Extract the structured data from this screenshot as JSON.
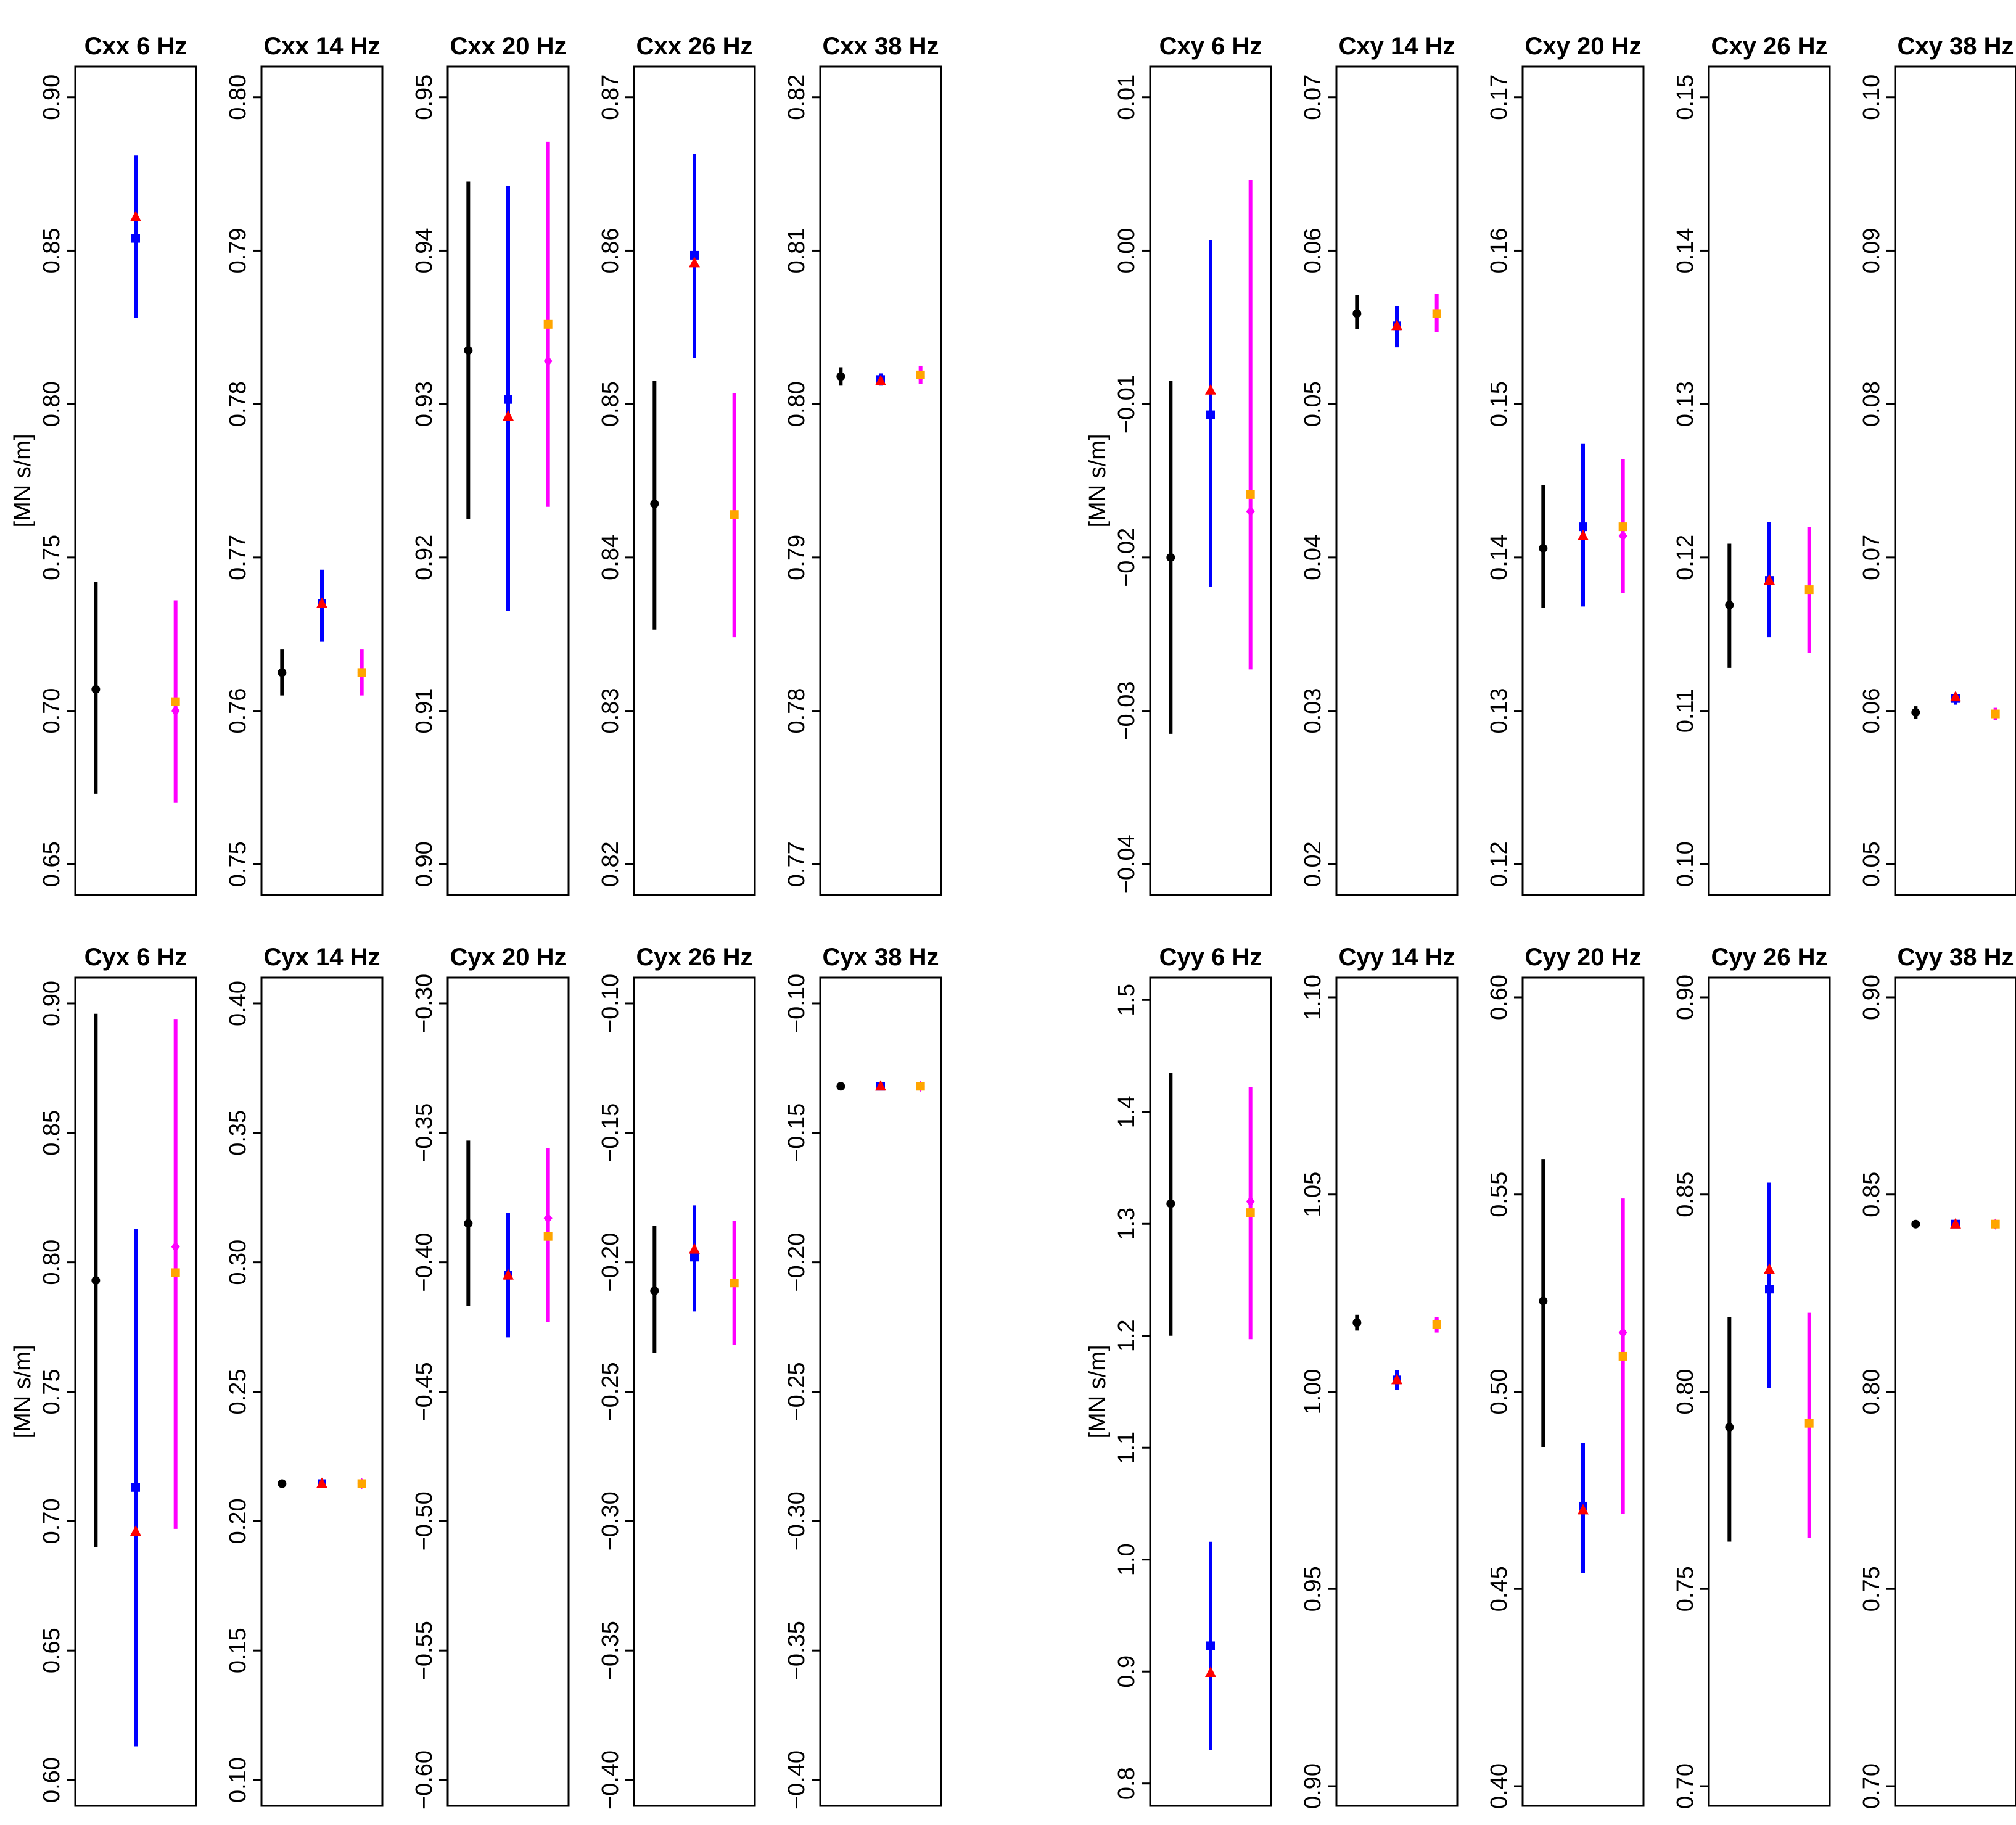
{
  "chart_data": {
    "type": "errorbar-grid",
    "colors": {
      "s1": "#000000",
      "s2": "#0000ff",
      "s3": "#ff00ff",
      "s2_marker": "#0000ff",
      "s2_alt_marker": "#ff0000",
      "s3_marker": "#ffa500"
    },
    "ylabel": "[MN s/m]",
    "panels": [
      {
        "title": "Cxx 6 Hz",
        "ymin": 0.64,
        "ymax": 0.91,
        "ticks": [
          "0.65",
          "0.70",
          "0.75",
          "0.80",
          "0.85",
          "0.90"
        ],
        "tickvals": [
          0.65,
          0.7,
          0.75,
          0.8,
          0.85,
          0.9
        ],
        "s1": {
          "v": 0.707,
          "lo": 0.673,
          "hi": 0.742
        },
        "s2": {
          "v": 0.854,
          "lo": 0.828,
          "hi": 0.881,
          "alt": 0.861
        },
        "s3": {
          "v": 0.703,
          "lo": 0.67,
          "hi": 0.736,
          "alt": 0.7
        }
      },
      {
        "title": "Cxx 14 Hz",
        "ymin": 0.748,
        "ymax": 0.802,
        "ticks": [
          "0.75",
          "0.76",
          "0.77",
          "0.78",
          "0.79",
          "0.80"
        ],
        "tickvals": [
          0.75,
          0.76,
          0.77,
          0.78,
          0.79,
          0.8
        ],
        "s1": {
          "v": 0.7625,
          "lo": 0.761,
          "hi": 0.764
        },
        "s2": {
          "v": 0.767,
          "lo": 0.7645,
          "hi": 0.7692,
          "alt": 0.767
        },
        "s3": {
          "v": 0.7625,
          "lo": 0.761,
          "hi": 0.764,
          "alt": 0.7625
        }
      },
      {
        "title": "Cxx 20 Hz",
        "ymin": 0.898,
        "ymax": 0.952,
        "ticks": [
          "0.90",
          "0.91",
          "0.92",
          "0.93",
          "0.94",
          "0.95"
        ],
        "tickvals": [
          0.9,
          0.91,
          0.92,
          0.93,
          0.94,
          0.95
        ],
        "s1": {
          "v": 0.9335,
          "lo": 0.9225,
          "hi": 0.9445
        },
        "s2": {
          "v": 0.9303,
          "lo": 0.9165,
          "hi": 0.9442,
          "alt": 0.9292
        },
        "s3": {
          "v": 0.9352,
          "lo": 0.9233,
          "hi": 0.9471,
          "alt": 0.9328
        }
      },
      {
        "title": "Cxx 26 Hz",
        "ymin": 0.818,
        "ymax": 0.872,
        "ticks": [
          "0.82",
          "0.83",
          "0.84",
          "0.85",
          "0.86",
          "0.87"
        ],
        "tickvals": [
          0.82,
          0.83,
          0.84,
          0.85,
          0.86,
          0.87
        ],
        "s1": {
          "v": 0.8435,
          "lo": 0.8353,
          "hi": 0.8515
        },
        "s2": {
          "v": 0.8597,
          "lo": 0.853,
          "hi": 0.8663,
          "alt": 0.8592
        },
        "s3": {
          "v": 0.8428,
          "lo": 0.8348,
          "hi": 0.8507,
          "alt": 0.8428
        }
      },
      {
        "title": "Cxx 38 Hz",
        "ymin": 0.768,
        "ymax": 0.822,
        "ticks": [
          "0.77",
          "0.78",
          "0.79",
          "0.80",
          "0.81",
          "0.82"
        ],
        "tickvals": [
          0.77,
          0.78,
          0.79,
          0.8,
          0.81,
          0.82
        ],
        "s1": {
          "v": 0.8018,
          "lo": 0.8012,
          "hi": 0.8024
        },
        "s2": {
          "v": 0.8016,
          "lo": 0.8012,
          "hi": 0.802,
          "alt": 0.8015
        },
        "s3": {
          "v": 0.8019,
          "lo": 0.8013,
          "hi": 0.8025,
          "alt": 0.8018
        }
      },
      {
        "title": "Cxy 6 Hz",
        "ymin": -0.042,
        "ymax": 0.012,
        "ticks": [
          "−0.04",
          "−0.03",
          "−0.02",
          "−0.01",
          "0.00",
          "0.01"
        ],
        "tickvals": [
          -0.04,
          -0.03,
          -0.02,
          -0.01,
          0.0,
          0.01
        ],
        "s1": {
          "v": -0.02,
          "lo": -0.0315,
          "hi": -0.0085
        },
        "s2": {
          "v": -0.0107,
          "lo": -0.0219,
          "hi": 0.0007,
          "alt": -0.0091
        },
        "s3": {
          "v": -0.0159,
          "lo": -0.0273,
          "hi": 0.0046,
          "alt": -0.017
        }
      },
      {
        "title": "Cxy 14 Hz",
        "ymin": 0.018,
        "ymax": 0.072,
        "ticks": [
          "0.02",
          "0.03",
          "0.04",
          "0.05",
          "0.06",
          "0.07"
        ],
        "tickvals": [
          0.02,
          0.03,
          0.04,
          0.05,
          0.06,
          0.07
        ],
        "s1": {
          "v": 0.0559,
          "lo": 0.0549,
          "hi": 0.0571
        },
        "s2": {
          "v": 0.0551,
          "lo": 0.0537,
          "hi": 0.0564,
          "alt": 0.0551
        },
        "s3": {
          "v": 0.0559,
          "lo": 0.0547,
          "hi": 0.0572,
          "alt": 0.0559
        }
      },
      {
        "title": "Cxy 20 Hz",
        "ymin": 0.118,
        "ymax": 0.172,
        "ticks": [
          "0.12",
          "0.13",
          "0.14",
          "0.15",
          "0.16",
          "0.17"
        ],
        "tickvals": [
          0.12,
          0.13,
          0.14,
          0.15,
          0.16,
          0.17
        ],
        "s1": {
          "v": 0.1406,
          "lo": 0.1367,
          "hi": 0.1447
        },
        "s2": {
          "v": 0.142,
          "lo": 0.1368,
          "hi": 0.1474,
          "alt": 0.1414
        },
        "s3": {
          "v": 0.142,
          "lo": 0.1377,
          "hi": 0.1464,
          "alt": 0.1414
        }
      },
      {
        "title": "Cxy 26 Hz",
        "ymin": 0.098,
        "ymax": 0.152,
        "ticks": [
          "0.10",
          "0.11",
          "0.12",
          "0.13",
          "0.14",
          "0.15"
        ],
        "tickvals": [
          0.1,
          0.11,
          0.12,
          0.13,
          0.14,
          0.15
        ],
        "s1": {
          "v": 0.1169,
          "lo": 0.1128,
          "hi": 0.1209
        },
        "s2": {
          "v": 0.1185,
          "lo": 0.1148,
          "hi": 0.1223,
          "alt": 0.1185
        },
        "s3": {
          "v": 0.1179,
          "lo": 0.1138,
          "hi": 0.122,
          "alt": 0.1179
        }
      },
      {
        "title": "Cxy 38 Hz",
        "ymin": 0.048,
        "ymax": 0.102,
        "ticks": [
          "0.05",
          "0.06",
          "0.07",
          "0.08",
          "0.09",
          "0.10"
        ],
        "tickvals": [
          0.05,
          0.06,
          0.07,
          0.08,
          0.09,
          0.1
        ],
        "s1": {
          "v": 0.0599,
          "lo": 0.0595,
          "hi": 0.0603
        },
        "s2": {
          "v": 0.0608,
          "lo": 0.0604,
          "hi": 0.0612,
          "alt": 0.0609
        },
        "s3": {
          "v": 0.0598,
          "lo": 0.0594,
          "hi": 0.0602,
          "alt": 0.0598
        }
      },
      {
        "title": "Cyx 6 Hz",
        "ymin": 0.59,
        "ymax": 0.91,
        "ticks": [
          "0.60",
          "0.65",
          "0.70",
          "0.75",
          "0.80",
          "0.85",
          "0.90"
        ],
        "tickvals": [
          0.6,
          0.65,
          0.7,
          0.75,
          0.8,
          0.85,
          0.9
        ],
        "s1": {
          "v": 0.793,
          "lo": 0.69,
          "hi": 0.896
        },
        "s2": {
          "v": 0.713,
          "lo": 0.613,
          "hi": 0.813,
          "alt": 0.696
        },
        "s3": {
          "v": 0.796,
          "lo": 0.697,
          "hi": 0.894,
          "alt": 0.806
        }
      },
      {
        "title": "Cyx 14 Hz",
        "ymin": 0.09,
        "ymax": 0.41,
        "ticks": [
          "0.10",
          "0.15",
          "0.20",
          "0.25",
          "0.30",
          "0.35",
          "0.40"
        ],
        "tickvals": [
          0.1,
          0.15,
          0.2,
          0.25,
          0.3,
          0.35,
          0.4
        ],
        "s1": {
          "v": 0.2145,
          "lo": 0.213,
          "hi": 0.216
        },
        "s2": {
          "v": 0.2145,
          "lo": 0.213,
          "hi": 0.216,
          "alt": 0.2145
        },
        "s3": {
          "v": 0.2145,
          "lo": 0.213,
          "hi": 0.216,
          "alt": 0.2145
        }
      },
      {
        "title": "Cyx 20 Hz",
        "ymin": -0.61,
        "ymax": -0.29,
        "ticks": [
          "−0.60",
          "−0.55",
          "−0.50",
          "−0.45",
          "−0.40",
          "−0.35",
          "−0.30"
        ],
        "tickvals": [
          -0.6,
          -0.55,
          -0.5,
          -0.45,
          -0.4,
          -0.35,
          -0.3
        ],
        "s1": {
          "v": -0.385,
          "lo": -0.417,
          "hi": -0.353
        },
        "s2": {
          "v": -0.405,
          "lo": -0.429,
          "hi": -0.381,
          "alt": -0.405
        },
        "s3": {
          "v": -0.39,
          "lo": -0.423,
          "hi": -0.356,
          "alt": -0.383
        }
      },
      {
        "title": "Cyx 26 Hz",
        "ymin": -0.41,
        "ymax": -0.09,
        "ticks": [
          "−0.40",
          "−0.35",
          "−0.30",
          "−0.25",
          "−0.20",
          "−0.15",
          "−0.10"
        ],
        "tickvals": [
          -0.4,
          -0.35,
          -0.3,
          -0.25,
          -0.2,
          -0.15,
          -0.1
        ],
        "s1": {
          "v": -0.211,
          "lo": -0.235,
          "hi": -0.186
        },
        "s2": {
          "v": -0.198,
          "lo": -0.219,
          "hi": -0.178,
          "alt": -0.195
        },
        "s3": {
          "v": -0.208,
          "lo": -0.232,
          "hi": -0.184,
          "alt": -0.208
        }
      },
      {
        "title": "Cyx 38 Hz",
        "ymin": -0.41,
        "ymax": -0.09,
        "ticks": [
          "−0.40",
          "−0.35",
          "−0.30",
          "−0.25",
          "−0.20",
          "−0.15",
          "−0.10"
        ],
        "tickvals": [
          -0.4,
          -0.35,
          -0.3,
          -0.25,
          -0.2,
          -0.15,
          -0.1
        ],
        "s1": {
          "v": -0.132,
          "lo": -0.133,
          "hi": -0.131
        },
        "s2": {
          "v": -0.132,
          "lo": -0.133,
          "hi": -0.131,
          "alt": -0.132
        },
        "s3": {
          "v": -0.132,
          "lo": -0.133,
          "hi": -0.131,
          "alt": -0.132
        }
      },
      {
        "title": "Cyy 6 Hz",
        "ymin": 0.78,
        "ymax": 1.52,
        "ticks": [
          "0.8",
          "0.9",
          "1.0",
          "1.1",
          "1.2",
          "1.3",
          "1.4",
          "1.5"
        ],
        "tickvals": [
          0.8,
          0.9,
          1.0,
          1.1,
          1.2,
          1.3,
          1.4,
          1.5
        ],
        "s1": {
          "v": 1.318,
          "lo": 1.2,
          "hi": 1.435
        },
        "s2": {
          "v": 0.923,
          "lo": 0.83,
          "hi": 1.016,
          "alt": 0.899
        },
        "s3": {
          "v": 1.31,
          "lo": 1.197,
          "hi": 1.422,
          "alt": 1.32
        }
      },
      {
        "title": "Cyy 14 Hz",
        "ymin": 0.895,
        "ymax": 1.105,
        "ticks": [
          "0.90",
          "0.95",
          "1.00",
          "1.05",
          "1.10"
        ],
        "tickvals": [
          0.9,
          0.95,
          1.0,
          1.05,
          1.1
        ],
        "s1": {
          "v": 1.0175,
          "lo": 1.0155,
          "hi": 1.0195
        },
        "s2": {
          "v": 1.003,
          "lo": 1.0005,
          "hi": 1.0055,
          "alt": 1.003
        },
        "s3": {
          "v": 1.017,
          "lo": 1.015,
          "hi": 1.019,
          "alt": 1.0175
        }
      },
      {
        "title": "Cyy 20 Hz",
        "ymin": 0.395,
        "ymax": 0.605,
        "ticks": [
          "0.40",
          "0.45",
          "0.50",
          "0.55",
          "0.60"
        ],
        "tickvals": [
          0.4,
          0.45,
          0.5,
          0.55,
          0.6
        ],
        "s1": {
          "v": 0.523,
          "lo": 0.486,
          "hi": 0.559
        },
        "s2": {
          "v": 0.471,
          "lo": 0.454,
          "hi": 0.487,
          "alt": 0.47
        },
        "s3": {
          "v": 0.509,
          "lo": 0.469,
          "hi": 0.549,
          "alt": 0.515
        }
      },
      {
        "title": "Cyy 26 Hz",
        "ymin": 0.695,
        "ymax": 0.905,
        "ticks": [
          "0.70",
          "0.75",
          "0.80",
          "0.85",
          "0.90"
        ],
        "tickvals": [
          0.7,
          0.75,
          0.8,
          0.85,
          0.9
        ],
        "s1": {
          "v": 0.791,
          "lo": 0.762,
          "hi": 0.819
        },
        "s2": {
          "v": 0.826,
          "lo": 0.801,
          "hi": 0.853,
          "alt": 0.831
        },
        "s3": {
          "v": 0.792,
          "lo": 0.763,
          "hi": 0.82,
          "alt": 0.792
        }
      },
      {
        "title": "Cyy 38 Hz",
        "ymin": 0.695,
        "ymax": 0.905,
        "ticks": [
          "0.70",
          "0.75",
          "0.80",
          "0.85",
          "0.90"
        ],
        "tickvals": [
          0.7,
          0.75,
          0.8,
          0.85,
          0.9
        ],
        "s1": {
          "v": 0.8425,
          "lo": 0.8415,
          "hi": 0.8435
        },
        "s2": {
          "v": 0.8425,
          "lo": 0.8415,
          "hi": 0.8435,
          "alt": 0.8425
        },
        "s3": {
          "v": 0.8425,
          "lo": 0.8415,
          "hi": 0.8435,
          "alt": 0.8425
        }
      }
    ]
  }
}
